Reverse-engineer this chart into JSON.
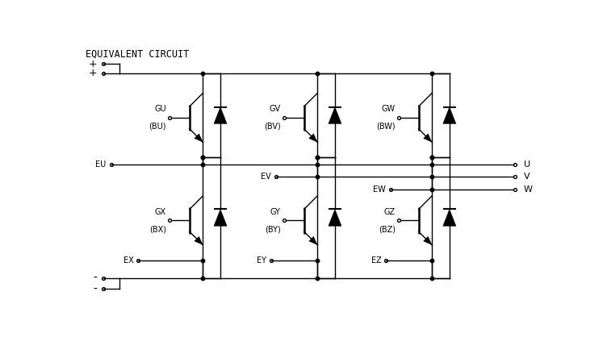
{
  "title": "EQUIVALENT CIRCUIT",
  "bg_color": "#ffffff",
  "line_color": "#000000",
  "lw": 1.0,
  "figsize": [
    7.52,
    4.34
  ],
  "dpi": 100,
  "upper_gate_labels": [
    "GU",
    "GV",
    "GW"
  ],
  "upper_gate_labels2": [
    "(BU)",
    "(BV)",
    "(BW)"
  ],
  "lower_gate_labels": [
    "GX",
    "GY",
    "GZ"
  ],
  "lower_gate_labels2": [
    "(BX)",
    "(BY)",
    "(BZ)"
  ],
  "output_labels": [
    "U",
    "V",
    "W"
  ],
  "e_labels_upper": [
    "EU",
    "EV",
    "EW"
  ],
  "e_labels_lower": [
    "EX",
    "EY",
    "EZ"
  ]
}
